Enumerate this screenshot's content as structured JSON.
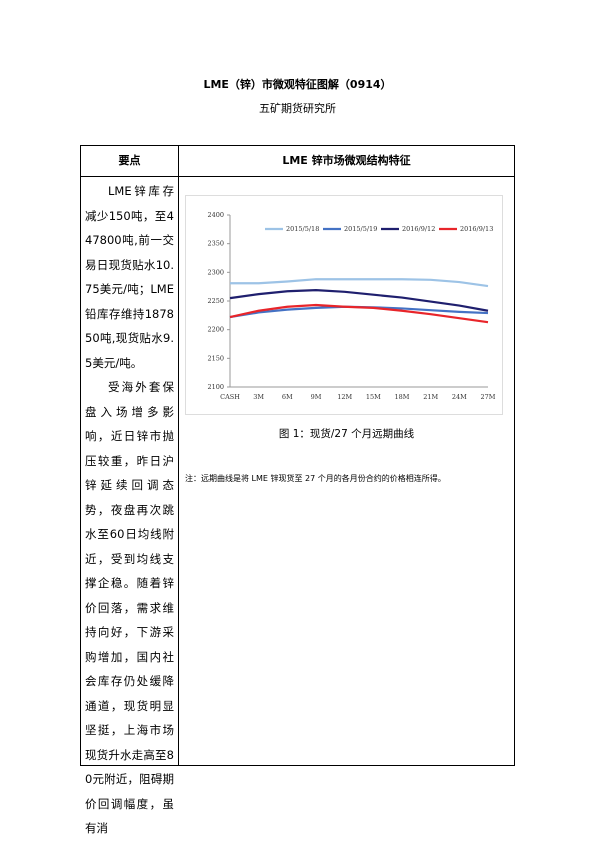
{
  "header": {
    "title": "LME（锌）市微观特征图解（0914）",
    "subtitle": "五矿期货研究所"
  },
  "table": {
    "headers": [
      "要点",
      "LME 锌市场微观结构特征"
    ],
    "key_points": [
      "LME锌库存减少150吨，至447800吨,前一交易日现货贴水10.75美元/吨；LME铅库存维持187850吨,现货贴水9.5美元/吨。",
      "受海外套保盘入场增多影响，近日锌市抛压较重，昨日沪锌延续回调态势，夜盘再次跳水至60日均线附近，受到均线支撑企稳。随着锌价回落，需求维持向好，下游采购增加，国内社会库存仍处缓降通道，现货明显坚挺，上海市场现货升水走高至80元附近，阻碍期价回调幅度，虽有消"
    ],
    "figure_caption": "图 1：现货/27 个月远期曲线",
    "note": "注：远期曲线是将 LME 锌现货至 27 个月的各月份合约的价格相连所得。"
  },
  "chart_data": {
    "type": "line",
    "categories": [
      "CASH",
      "3M",
      "6M",
      "9M",
      "12M",
      "15M",
      "18M",
      "21M",
      "24M",
      "27M"
    ],
    "series": [
      {
        "name": "2015/5/18",
        "color": "#9dc3e6",
        "values": [
          2281,
          2281,
          2284,
          2288,
          2288,
          2288,
          2288,
          2287,
          2283,
          2276
        ]
      },
      {
        "name": "2015/5/19",
        "color": "#4472c4",
        "values": [
          2222,
          2230,
          2235,
          2238,
          2240,
          2239,
          2237,
          2234,
          2231,
          2229
        ]
      },
      {
        "name": "2016/9/12",
        "color": "#1f1f6e",
        "values": [
          2255,
          2262,
          2267,
          2269,
          2266,
          2261,
          2256,
          2249,
          2242,
          2233
        ]
      },
      {
        "name": "2016/9/13",
        "color": "#e8252a",
        "values": [
          2222,
          2233,
          2240,
          2243,
          2240,
          2238,
          2233,
          2227,
          2220,
          2213
        ]
      }
    ],
    "ylim": [
      2100,
      2400
    ],
    "yticks": [
      2100,
      2150,
      2200,
      2250,
      2300,
      2350,
      2400
    ]
  }
}
